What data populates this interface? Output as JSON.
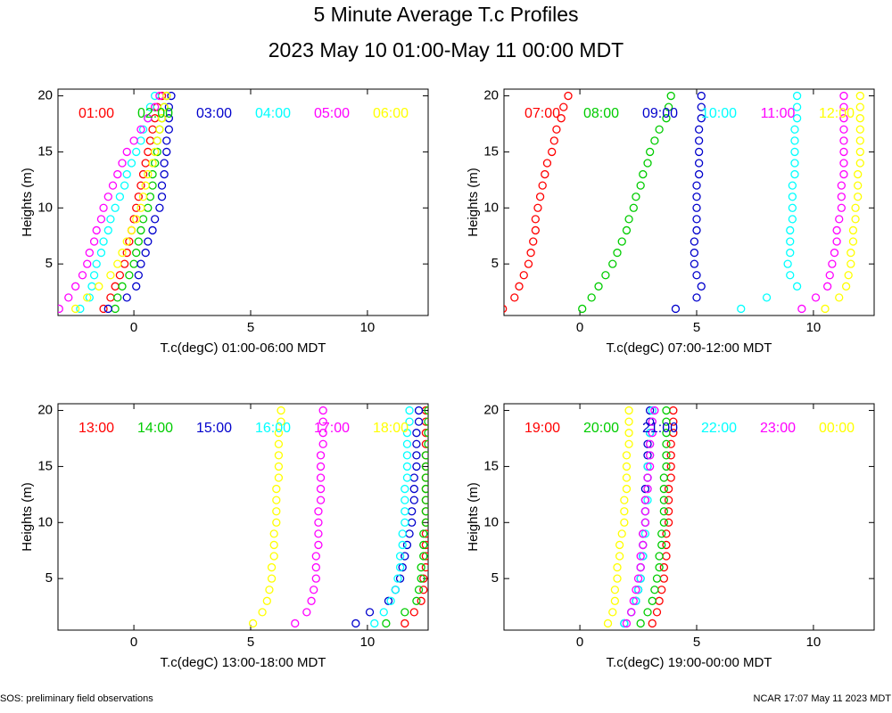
{
  "title": "5 Minute Average T.c Profiles",
  "subtitle": "2023 May 10 01:00-May 11 00:00 MDT",
  "footer_left": "SOS: preliminary field observations",
  "footer_right": "NCAR 17:07 May 11 2023 MDT",
  "chart_data": [
    {
      "type": "scatter",
      "xlabel": "T.c(degC) 01:00-06:00 MDT",
      "ylabel": "Heights (m)",
      "xlim": [
        -3.25,
        12.6
      ],
      "ylim": [
        0.4,
        20.6
      ],
      "xticks": [
        0,
        5,
        10
      ],
      "yticks": [
        5,
        10,
        15,
        20
      ],
      "y": [
        1,
        2,
        3,
        4,
        5,
        6,
        7,
        8,
        9,
        10,
        11,
        12,
        13,
        14,
        15,
        16,
        17,
        18,
        19,
        20
      ],
      "series": [
        {
          "name": "01:00",
          "color": "#ff0000",
          "x": [
            -1.3,
            -1.0,
            -0.8,
            -0.6,
            -0.4,
            -0.3,
            -0.2,
            -0.1,
            0.0,
            0.1,
            0.2,
            0.3,
            0.4,
            0.5,
            0.6,
            0.7,
            0.8,
            0.9,
            1.0,
            1.2
          ]
        },
        {
          "name": "02:00",
          "color": "#00cc00",
          "x": [
            -0.8,
            -0.7,
            -0.5,
            -0.2,
            0.0,
            0.1,
            0.2,
            0.3,
            0.4,
            0.6,
            0.7,
            0.8,
            0.8,
            0.9,
            1.0,
            1.0,
            1.1,
            1.2,
            1.3,
            1.4
          ]
        },
        {
          "name": "03:00",
          "color": "#0000cc",
          "x": [
            -1.1,
            -0.3,
            0.1,
            0.2,
            0.3,
            0.5,
            0.6,
            0.8,
            0.9,
            1.1,
            1.2,
            1.2,
            1.3,
            1.3,
            1.4,
            1.4,
            1.5,
            1.5,
            1.5,
            1.6
          ]
        },
        {
          "name": "04:00",
          "color": "#00ffff",
          "x": [
            -2.3,
            -1.9,
            -1.8,
            -1.7,
            -1.6,
            -1.4,
            -1.3,
            -1.1,
            -1.0,
            -0.8,
            -0.6,
            -0.4,
            -0.3,
            -0.1,
            0.1,
            0.3,
            0.4,
            0.6,
            0.7,
            0.9
          ]
        },
        {
          "name": "05:00",
          "color": "#ff00ff",
          "x": [
            -3.2,
            -2.8,
            -2.5,
            -2.2,
            -2.0,
            -1.9,
            -1.7,
            -1.6,
            -1.4,
            -1.3,
            -1.1,
            -0.9,
            -0.7,
            -0.5,
            -0.3,
            0.0,
            0.3,
            0.6,
            0.9,
            1.1
          ]
        },
        {
          "name": "06:00",
          "color": "#ffff00",
          "x": [
            -2.5,
            -2.0,
            -1.5,
            -1.0,
            -0.7,
            -0.5,
            -0.3,
            -0.1,
            0.1,
            0.3,
            0.4,
            0.5,
            0.6,
            0.8,
            0.9,
            1.0,
            1.1,
            1.2,
            1.3,
            1.4
          ]
        }
      ]
    },
    {
      "type": "scatter",
      "xlabel": "T.c(degC) 07:00-12:00 MDT",
      "ylabel": "Heights (m)",
      "xlim": [
        -3.25,
        12.6
      ],
      "ylim": [
        0.4,
        20.6
      ],
      "xticks": [
        0,
        5,
        10
      ],
      "yticks": [
        5,
        10,
        15,
        20
      ],
      "y": [
        1,
        2,
        3,
        4,
        5,
        6,
        7,
        8,
        9,
        10,
        11,
        12,
        13,
        14,
        15,
        16,
        17,
        18,
        19,
        20
      ],
      "series": [
        {
          "name": "07:00",
          "color": "#ff0000",
          "x": [
            -3.3,
            -2.8,
            -2.6,
            -2.4,
            -2.2,
            -2.1,
            -2.0,
            -1.9,
            -1.9,
            -1.8,
            -1.7,
            -1.6,
            -1.5,
            -1.4,
            -1.2,
            -1.1,
            -1.0,
            -0.8,
            -0.7,
            -0.5
          ]
        },
        {
          "name": "08:00",
          "color": "#00cc00",
          "x": [
            0.1,
            0.5,
            0.8,
            1.1,
            1.4,
            1.6,
            1.8,
            2.0,
            2.1,
            2.3,
            2.4,
            2.6,
            2.7,
            2.9,
            3.0,
            3.2,
            3.4,
            3.7,
            3.8,
            3.9
          ]
        },
        {
          "name": "09:00",
          "color": "#0000cc",
          "x": [
            4.1,
            5.0,
            5.2,
            5.0,
            4.9,
            4.9,
            4.9,
            5.0,
            5.0,
            5.0,
            5.0,
            5.0,
            5.1,
            5.1,
            5.1,
            5.1,
            5.1,
            5.2,
            5.2,
            5.2
          ]
        },
        {
          "name": "10:00",
          "color": "#00ffff",
          "x": [
            6.9,
            8.0,
            9.3,
            9.0,
            8.9,
            9.0,
            9.0,
            9.0,
            9.1,
            9.1,
            9.1,
            9.1,
            9.2,
            9.2,
            9.2,
            9.2,
            9.2,
            9.3,
            9.3,
            9.3
          ]
        },
        {
          "name": "11:00",
          "color": "#ff00ff",
          "x": [
            9.5,
            10.1,
            10.6,
            10.7,
            10.8,
            10.9,
            11.0,
            11.0,
            11.1,
            11.2,
            11.2,
            11.2,
            11.3,
            11.3,
            11.3,
            11.3,
            11.3,
            11.3,
            11.3,
            11.3
          ]
        },
        {
          "name": "12:00",
          "color": "#ffff00",
          "x": [
            10.5,
            11.1,
            11.4,
            11.5,
            11.6,
            11.6,
            11.7,
            11.7,
            11.8,
            11.8,
            11.9,
            11.9,
            11.9,
            12.0,
            12.0,
            12.0,
            12.0,
            12.0,
            12.0,
            12.0
          ]
        }
      ]
    },
    {
      "type": "scatter",
      "xlabel": "T.c(degC) 13:00-18:00 MDT",
      "ylabel": "Heights (m)",
      "xlim": [
        -3.25,
        12.6
      ],
      "ylim": [
        0.4,
        20.6
      ],
      "xticks": [
        0,
        5,
        10
      ],
      "yticks": [
        5,
        10,
        15,
        20
      ],
      "y": [
        1,
        2,
        3,
        4,
        5,
        6,
        7,
        8,
        9,
        10,
        11,
        12,
        13,
        14,
        15,
        16,
        17,
        18,
        19,
        20
      ],
      "series": [
        {
          "name": "13:00",
          "color": "#ff0000",
          "x": [
            11.6,
            12.0,
            12.3,
            12.4,
            12.4,
            12.5,
            12.5,
            12.5,
            12.5,
            12.5,
            12.5,
            12.5,
            12.5,
            12.5,
            12.5,
            12.5,
            12.5,
            12.5,
            12.5,
            12.5
          ]
        },
        {
          "name": "14:00",
          "color": "#00cc00",
          "x": [
            10.8,
            11.6,
            12.1,
            12.2,
            12.3,
            12.3,
            12.4,
            12.4,
            12.4,
            12.5,
            12.5,
            12.5,
            12.5,
            12.5,
            12.5,
            12.5,
            12.6,
            12.6,
            12.6,
            12.6
          ]
        },
        {
          "name": "15:00",
          "color": "#0000cc",
          "x": [
            9.5,
            10.1,
            10.9,
            11.2,
            11.4,
            11.5,
            11.6,
            11.7,
            11.8,
            11.9,
            11.9,
            12.0,
            12.0,
            12.0,
            12.1,
            12.1,
            12.1,
            12.1,
            12.2,
            12.2
          ]
        },
        {
          "name": "16:00",
          "color": "#00ffff",
          "x": [
            10.3,
            10.7,
            11.0,
            11.2,
            11.3,
            11.4,
            11.4,
            11.5,
            11.5,
            11.6,
            11.6,
            11.6,
            11.6,
            11.7,
            11.7,
            11.7,
            11.7,
            11.7,
            11.8,
            11.8
          ]
        },
        {
          "name": "17:00",
          "color": "#ff00ff",
          "x": [
            6.9,
            7.4,
            7.6,
            7.7,
            7.8,
            7.8,
            7.8,
            7.9,
            7.9,
            7.9,
            7.9,
            8.0,
            8.0,
            8.0,
            8.0,
            8.0,
            8.1,
            8.1,
            8.1,
            8.1
          ]
        },
        {
          "name": "18:00",
          "color": "#ffff00",
          "x": [
            5.1,
            5.5,
            5.7,
            5.8,
            5.9,
            5.9,
            6.0,
            6.0,
            6.0,
            6.1,
            6.1,
            6.1,
            6.1,
            6.2,
            6.2,
            6.2,
            6.2,
            6.2,
            6.3,
            6.3
          ]
        }
      ]
    },
    {
      "type": "scatter",
      "xlabel": "T.c(degC) 19:00-00:00 MDT",
      "ylabel": "Heights (m)",
      "xlim": [
        -3.25,
        12.6
      ],
      "ylim": [
        0.4,
        20.6
      ],
      "xticks": [
        0,
        5,
        10
      ],
      "yticks": [
        5,
        10,
        15,
        20
      ],
      "y": [
        1,
        2,
        3,
        4,
        5,
        6,
        7,
        8,
        9,
        10,
        11,
        12,
        13,
        14,
        15,
        16,
        17,
        18,
        19,
        20
      ],
      "series": [
        {
          "name": "19:00",
          "color": "#ff0000",
          "x": [
            3.1,
            3.3,
            3.4,
            3.5,
            3.6,
            3.6,
            3.7,
            3.7,
            3.7,
            3.8,
            3.8,
            3.8,
            3.8,
            3.9,
            3.9,
            3.9,
            3.9,
            4.0,
            4.0,
            4.0
          ]
        },
        {
          "name": "20:00",
          "color": "#00cc00",
          "x": [
            2.6,
            2.9,
            3.1,
            3.2,
            3.3,
            3.4,
            3.4,
            3.5,
            3.5,
            3.6,
            3.6,
            3.6,
            3.6,
            3.6,
            3.7,
            3.7,
            3.7,
            3.7,
            3.7,
            3.7
          ]
        },
        {
          "name": "21:00",
          "color": "#0000cc",
          "x": [
            1.9,
            2.2,
            2.4,
            2.5,
            2.6,
            2.6,
            2.7,
            2.7,
            2.7,
            2.8,
            2.8,
            2.8,
            2.8,
            2.9,
            2.9,
            2.9,
            2.9,
            3.0,
            3.0,
            3.0
          ]
        },
        {
          "name": "22:00",
          "color": "#00ffff",
          "x": [
            1.9,
            2.2,
            2.4,
            2.5,
            2.6,
            2.6,
            2.7,
            2.7,
            2.8,
            2.8,
            2.8,
            2.9,
            2.9,
            2.9,
            2.9,
            3.0,
            3.0,
            3.0,
            3.1,
            3.1
          ]
        },
        {
          "name": "23:00",
          "color": "#ff00ff",
          "x": [
            2.0,
            2.2,
            2.3,
            2.4,
            2.5,
            2.6,
            2.6,
            2.7,
            2.7,
            2.8,
            2.8,
            2.8,
            2.9,
            2.9,
            3.0,
            3.0,
            3.0,
            3.1,
            3.1,
            3.2
          ]
        },
        {
          "name": "00:00",
          "color": "#ffff00",
          "x": [
            1.2,
            1.4,
            1.5,
            1.5,
            1.6,
            1.6,
            1.7,
            1.7,
            1.8,
            1.9,
            1.9,
            1.9,
            2.0,
            2.0,
            2.0,
            2.0,
            2.1,
            2.1,
            2.1,
            2.1
          ]
        }
      ]
    }
  ]
}
